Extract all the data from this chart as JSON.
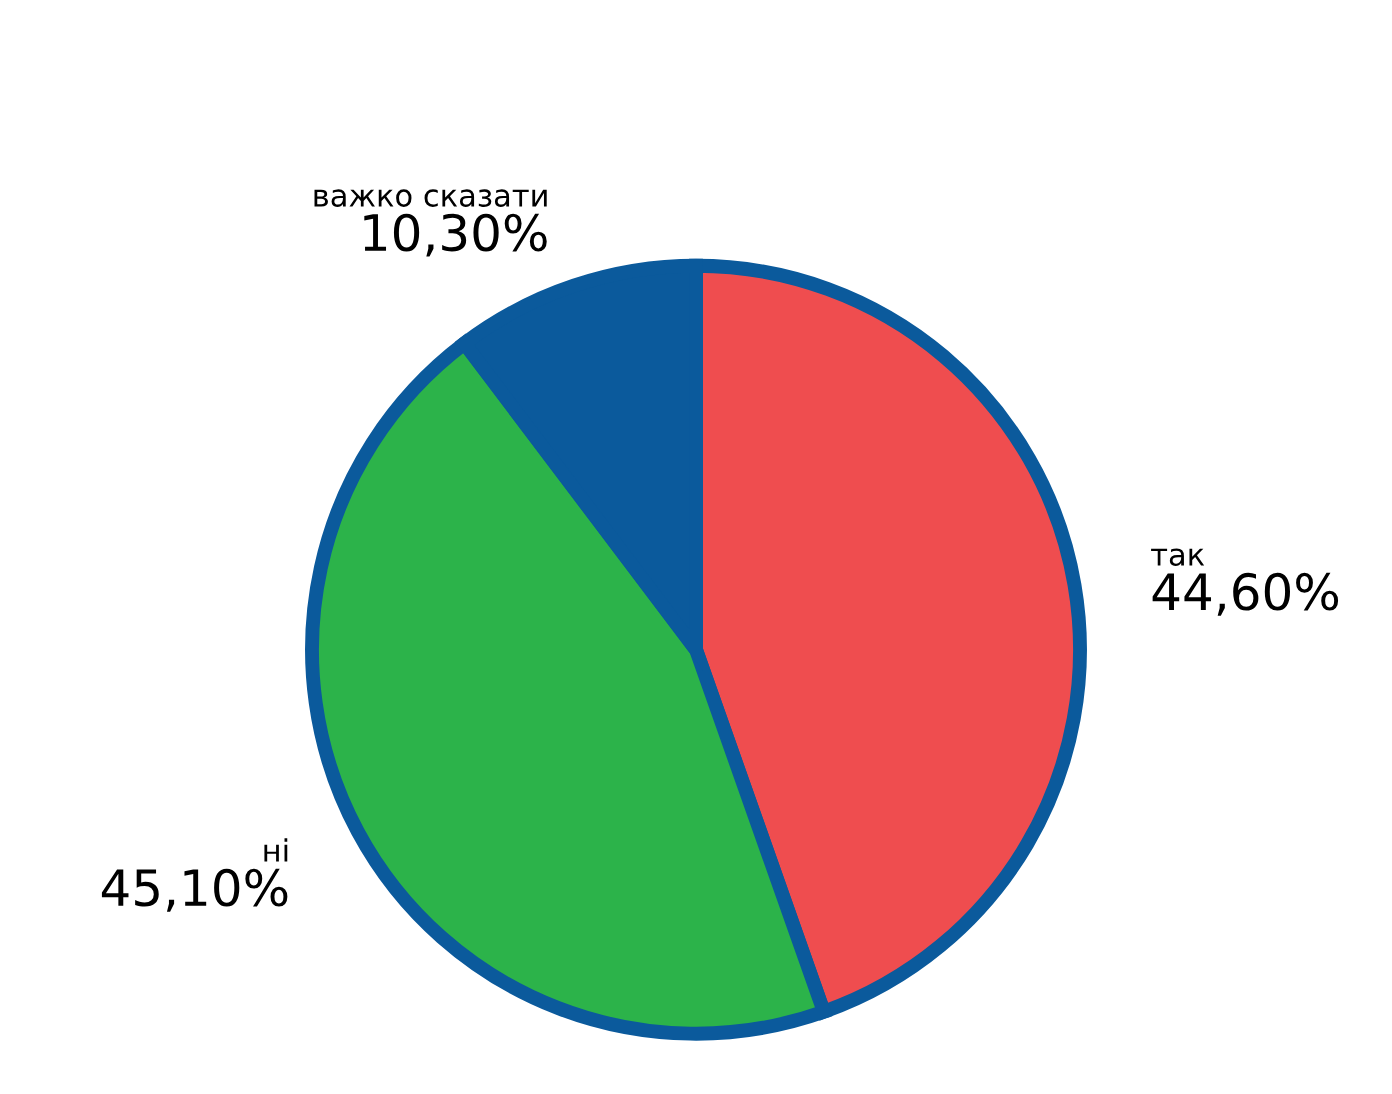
{
  "chart_data": {
    "type": "pie",
    "categories": [
      "так",
      "ні",
      "важко сказати"
    ],
    "values": [
      44.6,
      45.1,
      10.3
    ],
    "value_labels": [
      "44,60%",
      "45,10%",
      "10,30%"
    ],
    "colors": [
      "#ef4d4f",
      "#2cb34a",
      "#0b5a9c"
    ]
  }
}
